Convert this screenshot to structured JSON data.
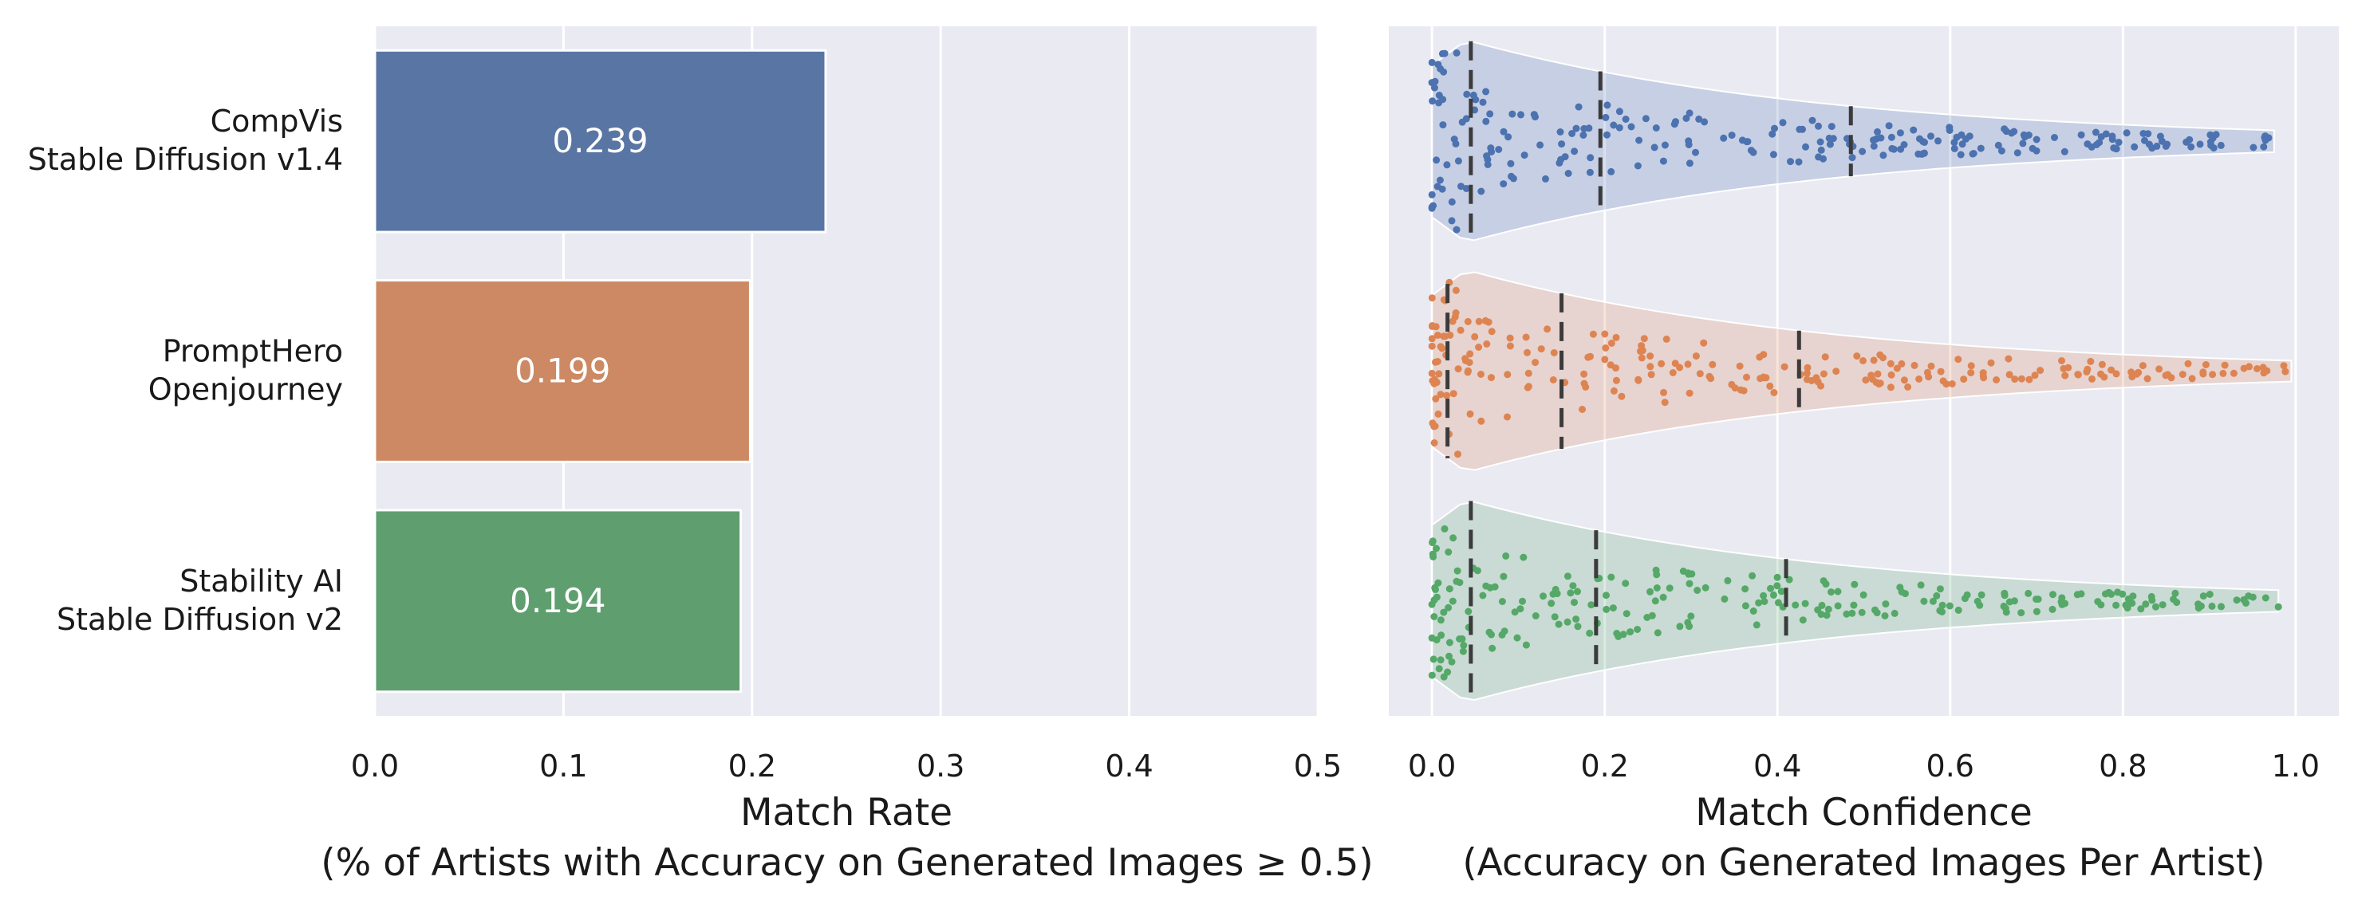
{
  "chart_data": [
    {
      "type": "bar",
      "orientation": "horizontal",
      "categories": [
        [
          "CompVis",
          "Stable Diffusion v1.4"
        ],
        [
          "PromptHero",
          "Openjourney"
        ],
        [
          "Stability AI",
          "Stable Diffusion v2"
        ]
      ],
      "values": [
        0.239,
        0.199,
        0.194
      ],
      "bar_labels": [
        "0.239",
        "0.199",
        "0.194"
      ],
      "colors": [
        "#5975a4",
        "#cc8963",
        "#5f9e6e"
      ],
      "xlim": [
        0.0,
        0.5
      ],
      "xticks": [
        0.0,
        0.1,
        0.2,
        0.3,
        0.4,
        0.5
      ],
      "xtick_labels": [
        "0.0",
        "0.1",
        "0.2",
        "0.3",
        "0.4",
        "0.5"
      ],
      "xlabel": "Match Rate",
      "xlabel_sub": "(% of Artists with Accuracy on Generated Images ≥ 0.5)",
      "grid": true,
      "background": "#eaeaf2"
    },
    {
      "type": "violin-swarm",
      "orientation": "horizontal",
      "series": [
        {
          "category": "CompVis Stable Diffusion v1.4",
          "color": "#4c72b0",
          "quartiles": [
            0.045,
            0.195,
            0.485
          ],
          "min": 0.0,
          "max": 0.975
        },
        {
          "category": "PromptHero Openjourney",
          "color": "#dd8452",
          "quartiles": [
            0.018,
            0.15,
            0.425
          ],
          "min": 0.0,
          "max": 0.995
        },
        {
          "category": "Stability AI Stable Diffusion v2",
          "color": "#55a868",
          "quartiles": [
            0.045,
            0.19,
            0.41
          ],
          "min": 0.0,
          "max": 0.98
        }
      ],
      "xlim": [
        -0.05,
        1.05
      ],
      "xticks": [
        0.0,
        0.2,
        0.4,
        0.6,
        0.8,
        1.0
      ],
      "xtick_labels": [
        "0.0",
        "0.2",
        "0.4",
        "0.6",
        "0.8",
        "1.0"
      ],
      "xlabel": "Match Confidence",
      "xlabel_sub": "(Accuracy on Generated Images Per Artist)",
      "grid": true,
      "background": "#eaeaf2"
    }
  ]
}
